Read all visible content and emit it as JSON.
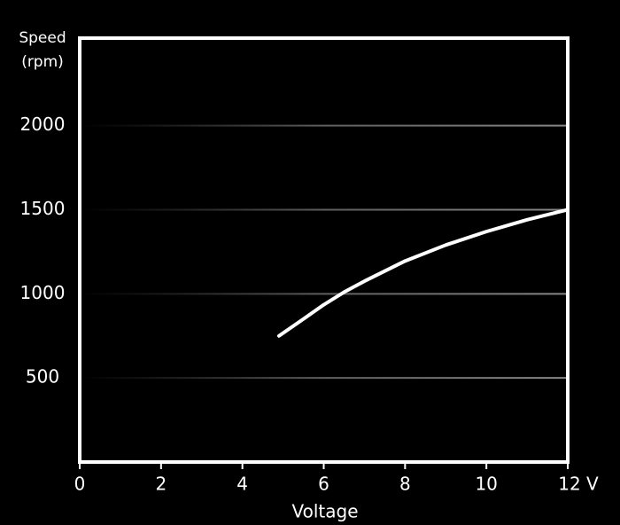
{
  "chart_data": {
    "type": "line",
    "y_label": "Speed",
    "y_unit": "(rpm)",
    "x_label": "Voltage",
    "x": [
      4.9,
      5.5,
      6,
      6.5,
      7,
      8,
      9,
      10,
      11,
      12
    ],
    "series": [
      {
        "color": "#ffffff",
        "values": [
          750,
          850,
          935,
          1010,
          1075,
          1195,
          1290,
          1370,
          1440,
          1500
        ]
      }
    ],
    "xlim": [
      0,
      12
    ],
    "xticks": [
      0,
      2,
      4,
      6,
      8,
      10,
      {
        "value": 12,
        "label": "12 V"
      }
    ],
    "ylim": [
      0,
      2520
    ],
    "yticks": [
      500,
      1000,
      1500,
      2000
    ],
    "grid": true
  }
}
